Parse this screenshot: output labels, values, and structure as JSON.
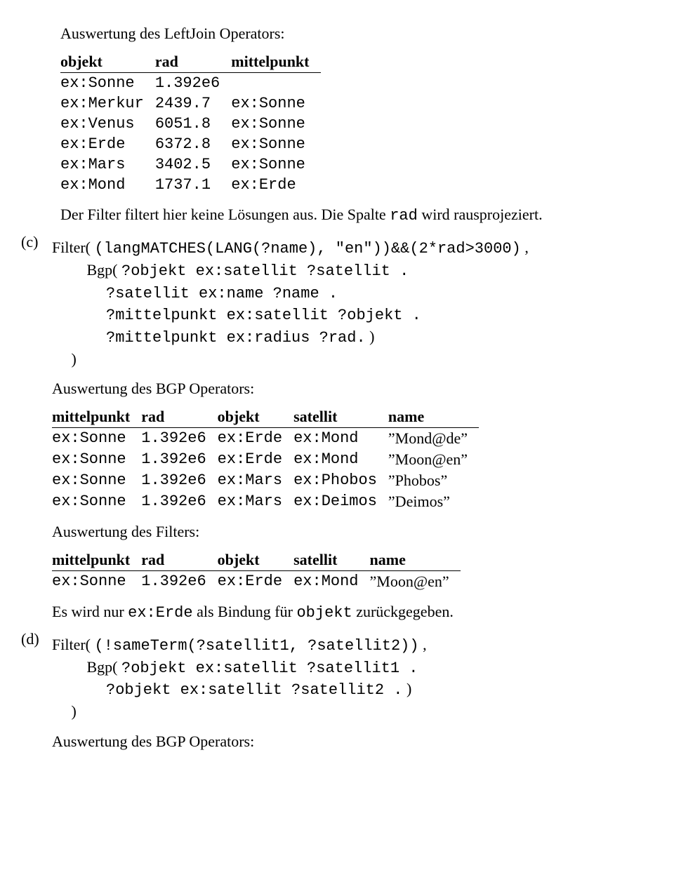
{
  "titleLeftJoin": "Auswertung des LeftJoin Operators:",
  "table1": {
    "headers": [
      "objekt",
      "rad",
      "mittelpunkt"
    ],
    "rows": [
      [
        "ex:Sonne",
        "1.392e6",
        ""
      ],
      [
        "ex:Merkur",
        "2439.7",
        "ex:Sonne"
      ],
      [
        "ex:Venus",
        "6051.8",
        "ex:Sonne"
      ],
      [
        "ex:Erde",
        "6372.8",
        "ex:Sonne"
      ],
      [
        "ex:Mars",
        "3402.5",
        "ex:Sonne"
      ],
      [
        "ex:Mond",
        "1737.1",
        "ex:Erde"
      ]
    ]
  },
  "para1_pre": "Der Filter filtert hier keine Lösungen aus. Die Spalte ",
  "para1_code": "rad",
  "para1_post": " wird rausprojeziert.",
  "cLabel": "(c)",
  "cFilter": {
    "l1a": "Filter( ",
    "l1b": "(langMATCHES(LANG(?name), \"en\"))&&(2*rad>3000)",
    "l1c": " ,",
    "l2": "         Bgp( ?objekt ex:satellit ?satellit .",
    "l3": "              ?satellit ex:name ?name .",
    "l4": "              ?mittelpunkt ex:satellit ?objekt .",
    "l5": "              ?mittelpunkt ex:radius ?rad. )",
    "l6": "     )"
  },
  "titleBGP": "Auswertung des BGP Operators:",
  "table2": {
    "headers": [
      "mittelpunkt",
      "rad",
      "objekt",
      "satellit",
      "name"
    ],
    "rows": [
      [
        "ex:Sonne",
        "1.392e6",
        "ex:Erde",
        "ex:Mond",
        "”Mond@de”"
      ],
      [
        "ex:Sonne",
        "1.392e6",
        "ex:Erde",
        "ex:Mond",
        "”Moon@en”"
      ],
      [
        "ex:Sonne",
        "1.392e6",
        "ex:Mars",
        "ex:Phobos",
        "”Phobos”"
      ],
      [
        "ex:Sonne",
        "1.392e6",
        "ex:Mars",
        "ex:Deimos",
        "”Deimos”"
      ]
    ]
  },
  "titleFilter": "Auswertung des Filters:",
  "table3": {
    "headers": [
      "mittelpunkt",
      "rad",
      "objekt",
      "satellit",
      "name"
    ],
    "rows": [
      [
        "ex:Sonne",
        "1.392e6",
        "ex:Erde",
        "ex:Mond",
        "”Moon@en”"
      ]
    ]
  },
  "para2_a": "Es wird nur ",
  "para2_b": "ex:Erde",
  "para2_c": " als Bindung für ",
  "para2_d": "objekt",
  "para2_e": " zurückgegeben.",
  "dLabel": "(d)",
  "dFilter": {
    "l1a": "Filter( ",
    "l1b": "(!sameTerm(?satellit1, ?satellit2))",
    "l1c": " ,",
    "l2": "         Bgp( ?objekt ex:satellit ?satellit1 .",
    "l3": "              ?objekt ex:satellit ?satellit2 . )",
    "l4": "     )"
  },
  "titleBGP2": "Auswertung des BGP Operators:"
}
